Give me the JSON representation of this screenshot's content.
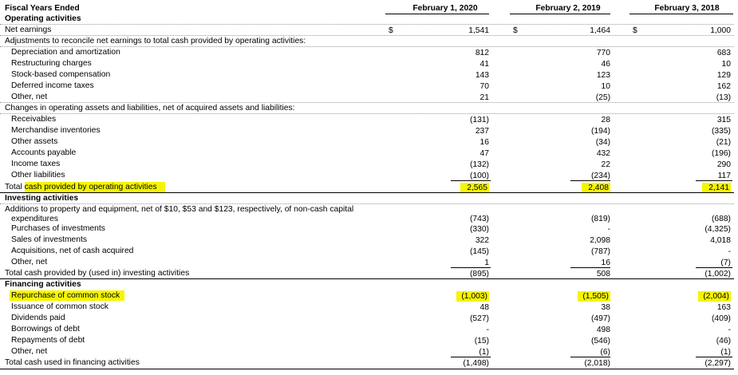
{
  "header": {
    "title": "Fiscal Years Ended",
    "columns": [
      "February 1, 2020",
      "February 2, 2019",
      "February 3, 2018"
    ]
  },
  "rows": [
    {
      "label": "Operating activities"
    },
    {
      "label": "Net earnings",
      "dollar": "$",
      "values": [
        "1,541",
        "1,464",
        "1,000"
      ]
    },
    {
      "label": "Adjustments to reconcile net earnings to total cash provided by operating activities:"
    },
    {
      "label": "Depreciation and amortization",
      "values": [
        "812",
        "770",
        "683"
      ]
    },
    {
      "label": "Restructuring charges",
      "values": [
        "41",
        "46",
        "10"
      ]
    },
    {
      "label": "Stock-based compensation",
      "values": [
        "143",
        "123",
        "129"
      ]
    },
    {
      "label": "Deferred income taxes",
      "values": [
        "70",
        "10",
        "162"
      ]
    },
    {
      "label": "Other, net",
      "values": [
        "21",
        "(25)",
        "(13)"
      ]
    },
    {
      "label": "Changes in operating assets and liabilities, net of acquired assets and liabilities:"
    },
    {
      "label": "Receivables",
      "values": [
        "(131)",
        "28",
        "315"
      ]
    },
    {
      "label": "Merchandise inventories",
      "values": [
        "237",
        "(194)",
        "(335)"
      ]
    },
    {
      "label": "Other assets",
      "values": [
        "16",
        "(34)",
        "(21)"
      ]
    },
    {
      "label": "Accounts payable",
      "values": [
        "47",
        "432",
        "(196)"
      ]
    },
    {
      "label": "Income taxes",
      "values": [
        "(132)",
        "22",
        "290"
      ]
    },
    {
      "label": "Other liabilities",
      "values": [
        "(100)",
        "(234)",
        "117"
      ]
    },
    {
      "label_prefix": "Total",
      "label": "cash provided by operating activities",
      "values": [
        "2,565",
        "2,408",
        "2,141"
      ]
    },
    {
      "label": "Investing activities"
    },
    {
      "label": "Additions to property and equipment, net of $10, $53 and $123, respectively, of non-cash capital",
      "label2": "expenditures",
      "values": [
        "(743)",
        "(819)",
        "(688)"
      ]
    },
    {
      "label": "Purchases of investments",
      "values": [
        "(330)",
        "-",
        "(4,325)"
      ]
    },
    {
      "label": "Sales of investments",
      "values": [
        "322",
        "2,098",
        "4,018"
      ]
    },
    {
      "label": "Acquisitions, net of cash acquired",
      "values": [
        "(145)",
        "(787)",
        "-"
      ]
    },
    {
      "label": "Other, net",
      "values": [
        "1",
        "16",
        "(7)"
      ]
    },
    {
      "label": "Total cash provided by (used in) investing activities",
      "values": [
        "(895)",
        "508",
        "(1,002)"
      ]
    },
    {
      "label": "Financing activities"
    },
    {
      "label": "Repurchase of common stock",
      "values": [
        "(1,003)",
        "(1,505)",
        "(2,004)"
      ]
    },
    {
      "label": "Issuance of common stock",
      "values": [
        "48",
        "38",
        "163"
      ]
    },
    {
      "label": "Dividends paid",
      "values": [
        "(527)",
        "(497)",
        "(409)"
      ]
    },
    {
      "label": "Borrowings of debt",
      "values": [
        "-",
        "498",
        "-"
      ]
    },
    {
      "label": "Repayments of debt",
      "values": [
        "(15)",
        "(546)",
        "(46)"
      ]
    },
    {
      "label": "Other, net",
      "values": [
        "(1)",
        "(6)",
        "(1)"
      ]
    },
    {
      "label": "Total cash used in financing activities",
      "values": [
        "(1,498)",
        "(2,018)",
        "(2,297)"
      ]
    }
  ],
  "highlight_color": "#f5f500"
}
